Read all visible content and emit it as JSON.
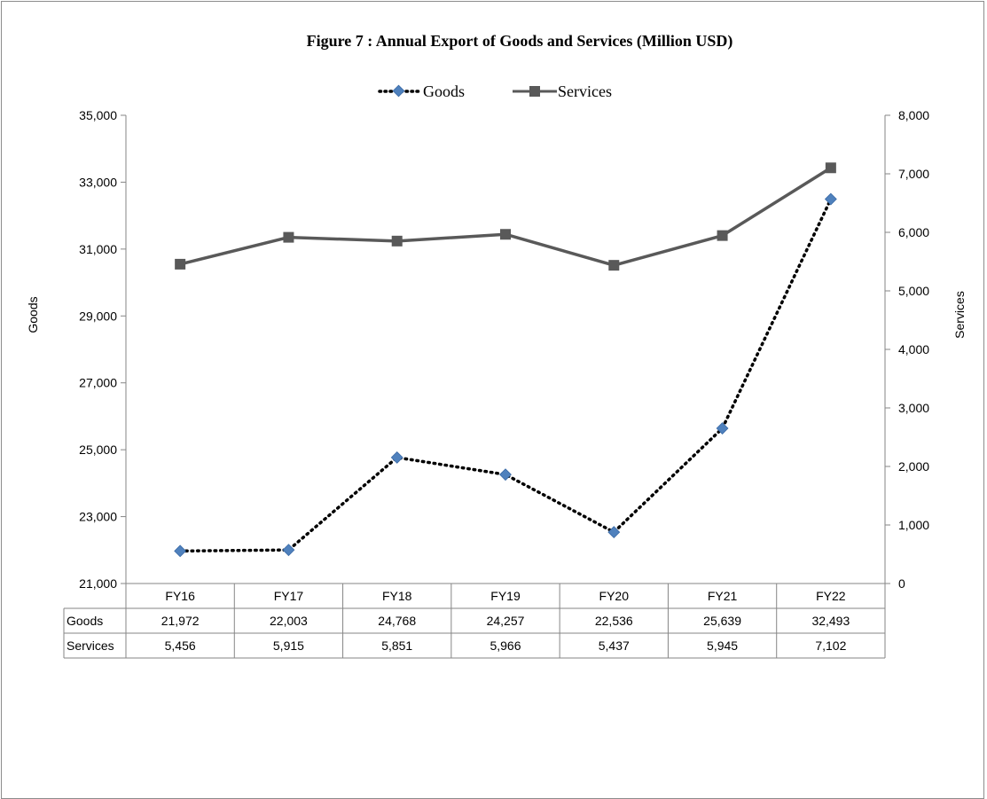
{
  "chart_data": {
    "type": "line",
    "title": "Figure  7 : Annual Export of Goods and Services (Million USD)",
    "categories": [
      "FY16",
      "FY17",
      "FY18",
      "FY19",
      "FY20",
      "FY21",
      "FY22"
    ],
    "series": [
      {
        "name": "Goods",
        "axis": "left",
        "values": [
          21972,
          22003,
          24768,
          24257,
          22536,
          25639,
          32493
        ],
        "labels": [
          "21,972",
          "22,003",
          "24,768",
          "24,257",
          "22,536",
          "25,639",
          "32,493"
        ],
        "color": "#4f81bd",
        "line_color": "#000000",
        "line_style": "dotted",
        "marker": "diamond"
      },
      {
        "name": "Services",
        "axis": "right",
        "values": [
          5456,
          5915,
          5851,
          5966,
          5437,
          5945,
          7102
        ],
        "labels": [
          "5,456",
          "5,915",
          "5,851",
          "5,966",
          "5,437",
          "5,945",
          "7,102"
        ],
        "color": "#595959",
        "line_style": "solid",
        "marker": "square"
      }
    ],
    "y_left": {
      "label": "Goods",
      "range": [
        21000,
        35000
      ],
      "ticks": [
        21000,
        23000,
        25000,
        27000,
        29000,
        31000,
        33000,
        35000
      ],
      "tick_labels": [
        "21,000",
        "23,000",
        "25,000",
        "27,000",
        "29,000",
        "31,000",
        "33,000",
        "35,000"
      ]
    },
    "y_right": {
      "label": "Services",
      "range": [
        0,
        8000
      ],
      "ticks": [
        0,
        1000,
        2000,
        3000,
        4000,
        5000,
        6000,
        7000,
        8000
      ],
      "tick_labels": [
        "0",
        "1,000",
        "2,000",
        "3,000",
        "4,000",
        "5,000",
        "6,000",
        "7,000",
        "8,000"
      ]
    },
    "grid": false,
    "legend": "top-center",
    "data_table": true
  }
}
